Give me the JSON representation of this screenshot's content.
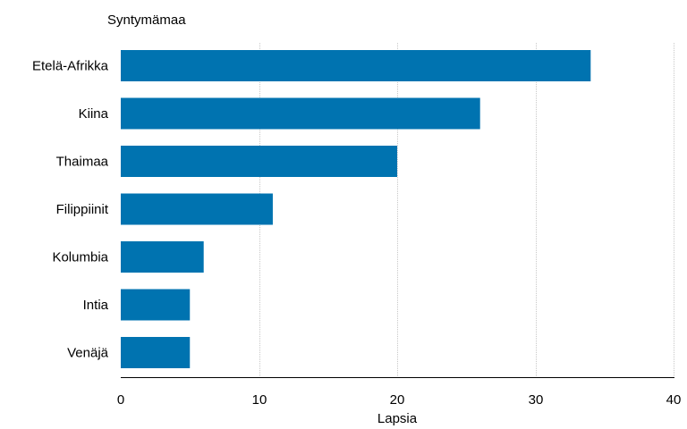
{
  "chart_data": {
    "type": "bar",
    "orientation": "horizontal",
    "categories": [
      "Etelä-Afrikka",
      "Kiina",
      "Thaimaa",
      "Filippiinit",
      "Kolumbia",
      "Intia",
      "Venäjä"
    ],
    "values": [
      34,
      26,
      20,
      11,
      6,
      5,
      5
    ],
    "xlabel": "Lapsia",
    "ylabel": "Syntymämaa",
    "xlim": [
      0,
      40
    ],
    "xticks": [
      "0",
      "10",
      "20",
      "30",
      "40"
    ],
    "grid": "vertical",
    "legend": "none",
    "colors": {
      "bar": "#0073b0",
      "grid": "#c8c8c8",
      "axis": "#000000"
    }
  }
}
